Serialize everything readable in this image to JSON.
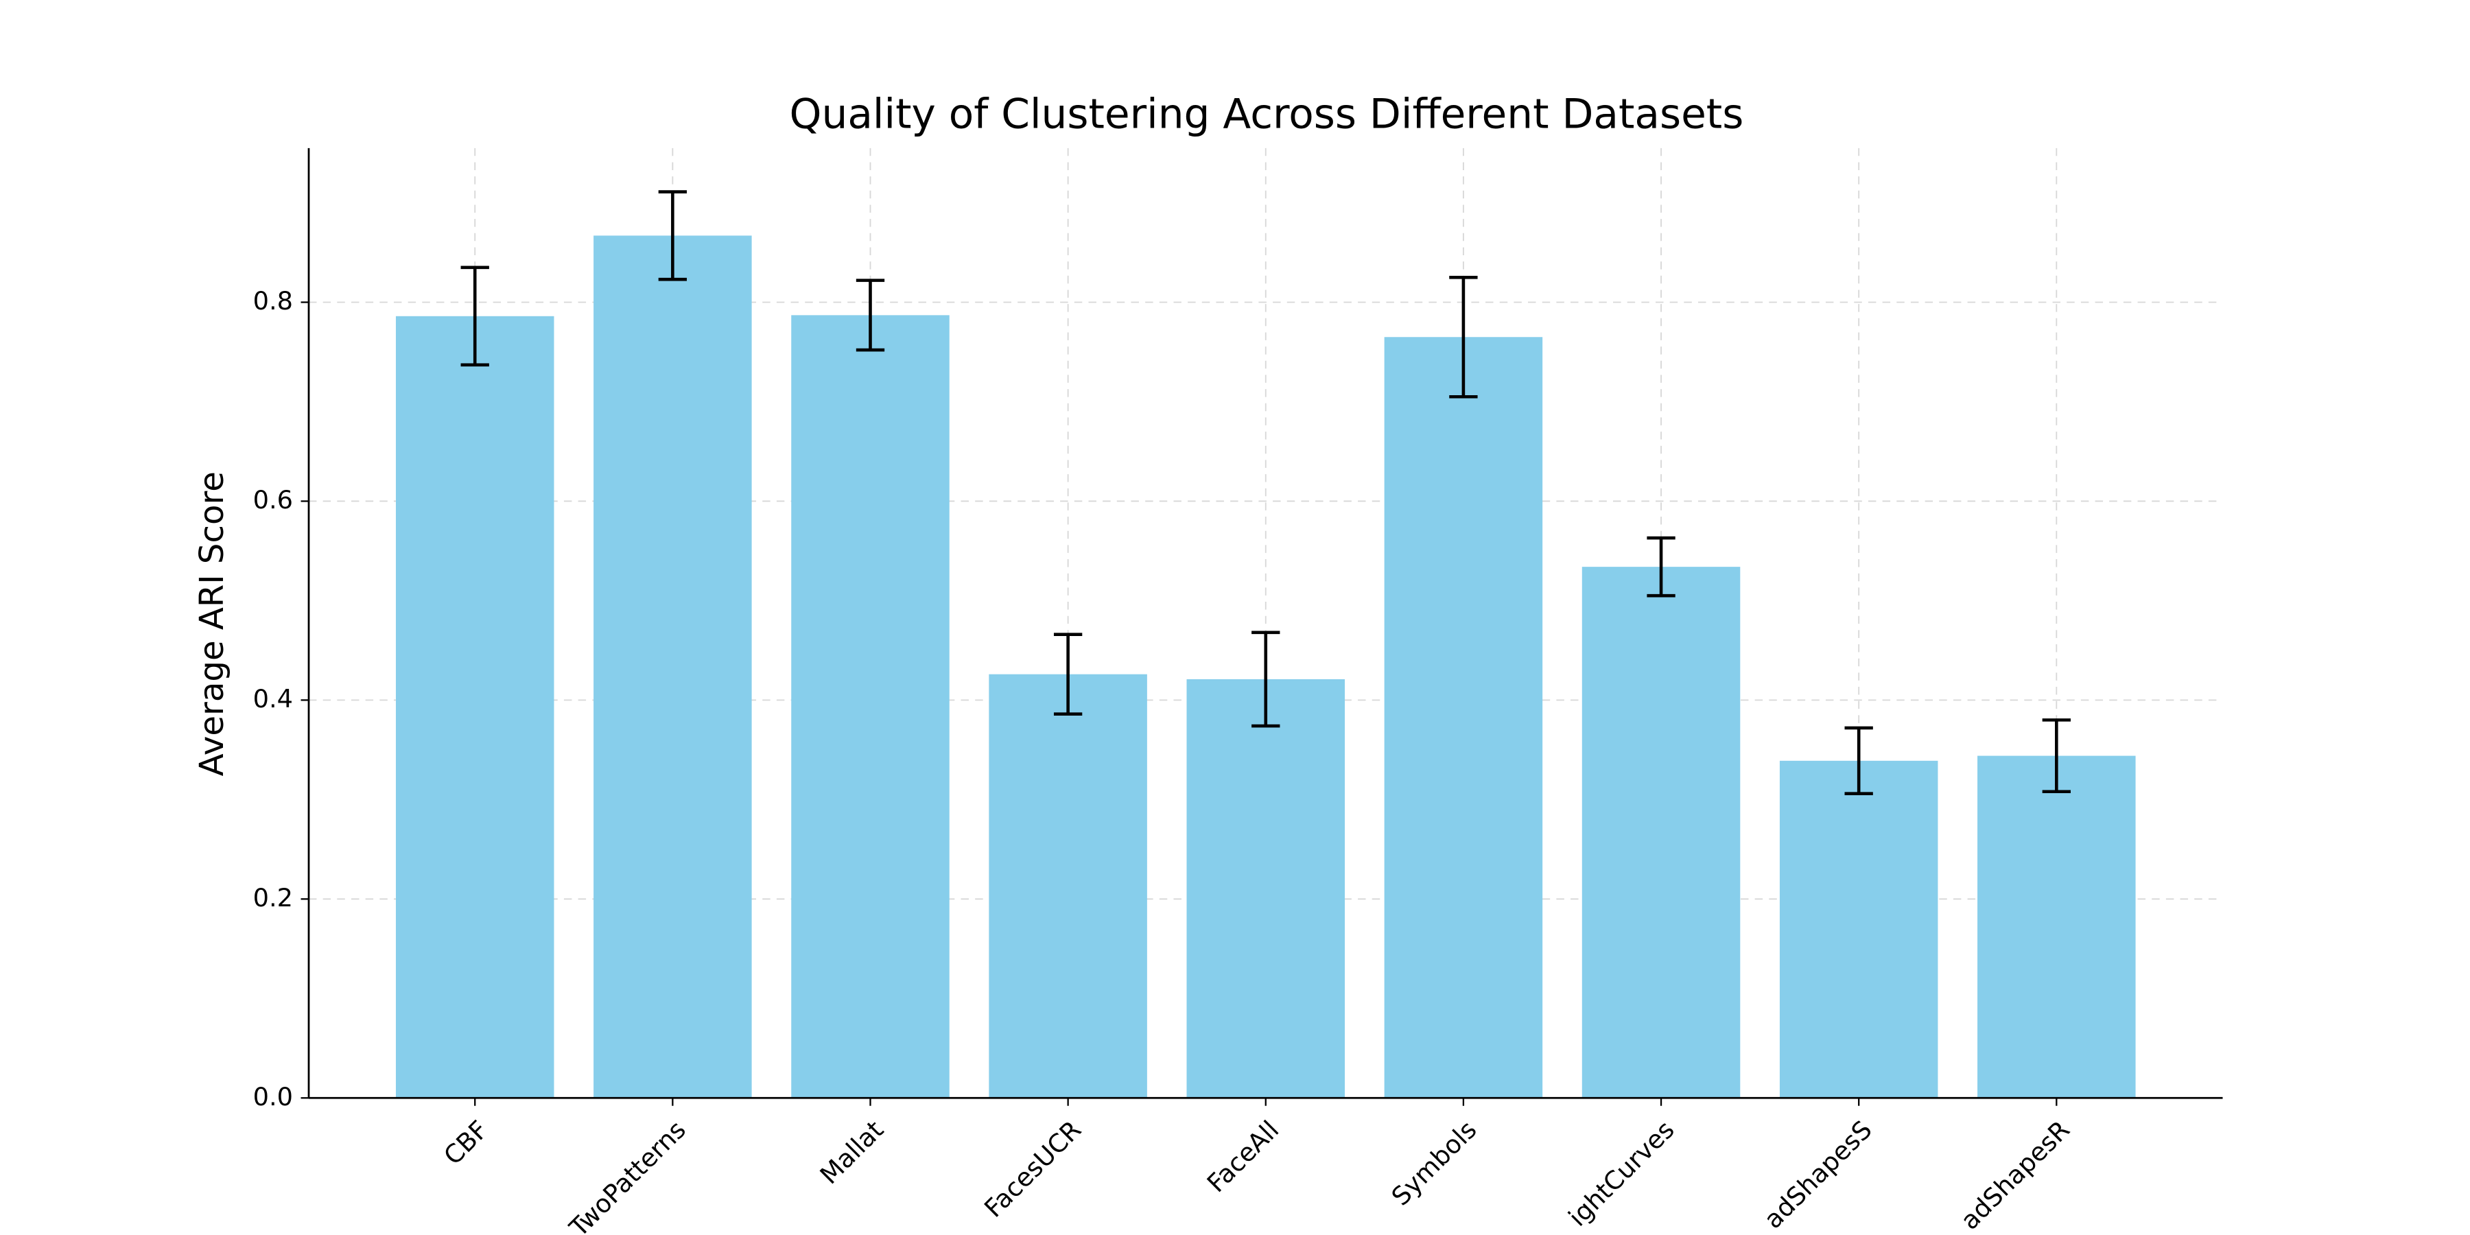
{
  "chart_data": {
    "type": "bar",
    "title": "Quality of Clustering Across Different Datasets",
    "y_label": "Average ARI Score",
    "categories": [
      "CBF",
      "TwoPatterns",
      "Mallat",
      "FacesUCR",
      "FaceAll",
      "Symbols",
      "ightCurves",
      "adShapesS",
      "adShapesR"
    ],
    "values": [
      0.786,
      0.867,
      0.787,
      0.426,
      0.421,
      0.765,
      0.534,
      0.339,
      0.344
    ],
    "errors": [
      0.049,
      0.044,
      0.035,
      0.04,
      0.047,
      0.06,
      0.029,
      0.033,
      0.036
    ],
    "color": "#87ceeb",
    "error_color": "#000000",
    "ylim": [
      0,
      0.955
    ],
    "yticks": [
      {
        "value": 0,
        "label": "0.0"
      },
      0.2,
      0.4,
      0.6,
      0.8
    ],
    "grid": true
  }
}
